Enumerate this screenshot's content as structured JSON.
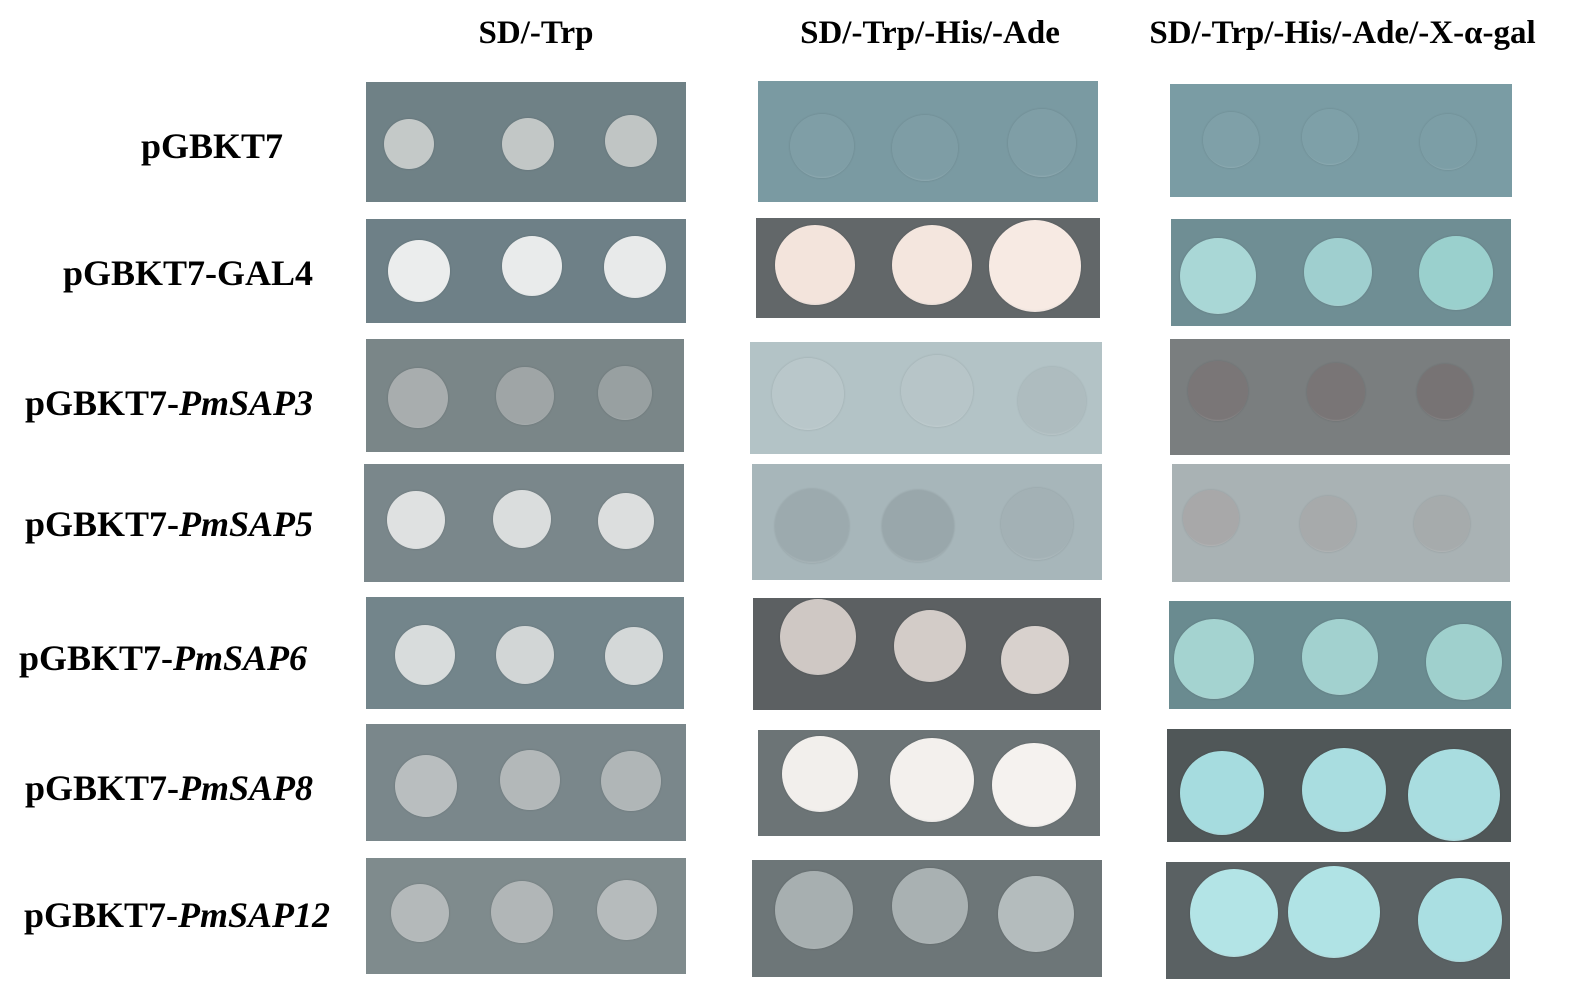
{
  "column_headers": [
    "SD/-Trp",
    "SD/-Trp/-His/-Ade",
    "SD/-Trp/-His/-Ade/-X-α-gal"
  ],
  "rows": [
    {
      "prefix": "pGBKT7",
      "gene": ""
    },
    {
      "prefix": "pGBKT7-GAL4",
      "gene": ""
    },
    {
      "prefix": "pGBKT7-",
      "gene": "PmSAP3"
    },
    {
      "prefix": "pGBKT7-",
      "gene": "PmSAP5"
    },
    {
      "prefix": "pGBKT7-",
      "gene": "PmSAP6"
    },
    {
      "prefix": "pGBKT7-",
      "gene": "PmSAP8"
    },
    {
      "prefix": "pGBKT7-",
      "gene": "PmSAP12"
    }
  ],
  "plates": [
    [
      {
        "bg": "#6f8186",
        "spots": [
          "#c4c9c8",
          "#c2c7c6",
          "#c0c5c4"
        ]
      },
      {
        "bg": "#6e8087",
        "spots": [
          "#ebeded",
          "#e9ebeb",
          "#e8eaea"
        ]
      },
      {
        "bg": "#7a8688",
        "spots": [
          "#a8adae",
          "#9fa5a6",
          "#98a0a1"
        ]
      },
      {
        "bg": "#7a878b",
        "spots": [
          "#dfe1e1",
          "#dadddd",
          "#dcdede"
        ]
      },
      {
        "bg": "#73858b",
        "spots": [
          "#d8dcdc",
          "#d2d6d6",
          "#d4d8d8"
        ]
      },
      {
        "bg": "#7a878b",
        "spots": [
          "#b9bebf",
          "#b3b8b9",
          "#b0b6b7"
        ]
      },
      {
        "bg": "#7f8b8d",
        "spots": [
          "#b4b9ba",
          "#b1b6b7",
          "#b6bbbc"
        ]
      }
    ],
    [
      {
        "bg": "#7a9aa2",
        "spots": [
          "#7f9ea6",
          "#7e9da5",
          "#7f9ea6"
        ]
      },
      {
        "bg": "#626769",
        "spots": [
          "#f3e4dc",
          "#f4e6de",
          "#f7eae3"
        ]
      },
      {
        "bg": "#b3c3c6",
        "spots": [
          "#b9c7ca",
          "#b7c5c8",
          "#aebcbf"
        ]
      },
      {
        "bg": "#a7b6ba",
        "spots": [
          "#9caaae",
          "#99a7ab",
          "#a3b1b5"
        ]
      },
      {
        "bg": "#5c6062",
        "spots": [
          "#cfc8c4",
          "#d3ccc8",
          "#d8d1cd"
        ]
      },
      {
        "bg": "#6c7476",
        "spots": [
          "#f2efec",
          "#f3f0ed",
          "#f5f2ef"
        ]
      },
      {
        "bg": "#6d7678",
        "spots": [
          "#a7afb0",
          "#a9b1b2",
          "#b4bcbd"
        ]
      }
    ],
    [
      {
        "bg": "#7a9ca4",
        "spots": [
          "#7fa0a8",
          "#7ea0a8",
          "#7c9ea6"
        ]
      },
      {
        "bg": "#6f8e94",
        "spots": [
          "#a9d7d6",
          "#9fcfcf",
          "#9ad0cd"
        ]
      },
      {
        "bg": "#7a7e7f",
        "spots": [
          "#7a7677",
          "#797576",
          "#777374"
        ]
      },
      {
        "bg": "#a9b2b4",
        "spots": [
          "#a8a8a9",
          "#a7aaab",
          "#a6abac"
        ]
      },
      {
        "bg": "#6a8b90",
        "spots": [
          "#a4d3d0",
          "#a2d1cf",
          "#9fd0cd"
        ]
      },
      {
        "bg": "#505758",
        "spots": [
          "#a6dcdf",
          "#a9dde0",
          "#a9dde0"
        ]
      },
      {
        "bg": "#5a6163",
        "spots": [
          "#b3e4e6",
          "#b0e3e5",
          "#aadfe2"
        ]
      }
    ]
  ]
}
